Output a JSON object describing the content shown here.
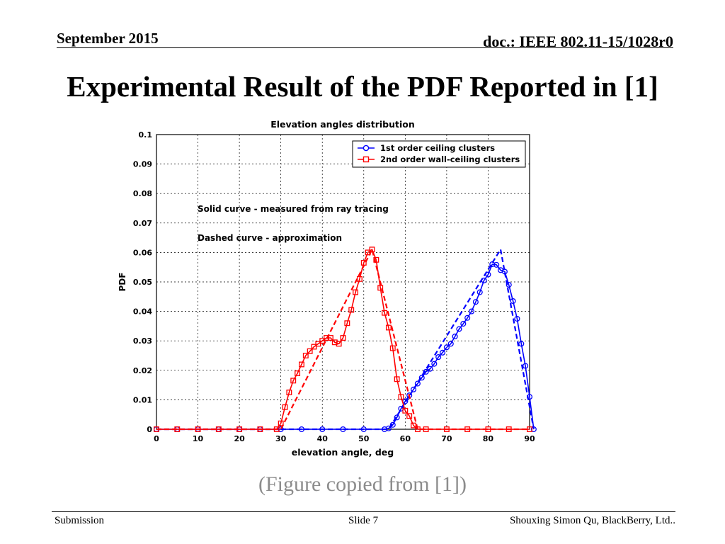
{
  "header": {
    "date": "September 2015",
    "doc_id": "doc.: IEEE 802.11-15/1028r0"
  },
  "slide_title": "Experimental Result of the PDF Reported in [1]",
  "caption": "(Figure copied from [1])",
  "footer": {
    "left": "Submission",
    "center": "Slide 7",
    "right": "Shouxing Simon Qu, BlackBerry, Ltd.."
  },
  "colors": {
    "blue": "#0000ff",
    "red": "#ff0000",
    "grid": "#000000"
  },
  "chart_data": {
    "type": "line",
    "title": "Elevation angles distribution",
    "xlabel": "elevation angle, deg",
    "ylabel": "PDF",
    "xlim": [
      0,
      90
    ],
    "ylim": [
      0,
      0.1
    ],
    "xticks": [
      "0",
      "10",
      "20",
      "30",
      "40",
      "50",
      "60",
      "70",
      "80",
      "90"
    ],
    "yticks": [
      "0",
      "0.01",
      "0.02",
      "0.03",
      "0.04",
      "0.05",
      "0.06",
      "0.07",
      "0.08",
      "0.09",
      "0.1"
    ],
    "grid": true,
    "legend_position": "top-right",
    "annotations": [
      "Solid curve - measured from ray tracing",
      "Dashed curve - approximation"
    ],
    "series": [
      {
        "name": "1st order ceiling clusters",
        "color": "#0000ff",
        "marker": "circle",
        "measured": [
          [
            0,
            0
          ],
          [
            5,
            0
          ],
          [
            10,
            0
          ],
          [
            15,
            0
          ],
          [
            20,
            0
          ],
          [
            25,
            0
          ],
          [
            30,
            0
          ],
          [
            35,
            0
          ],
          [
            40,
            0
          ],
          [
            45,
            0
          ],
          [
            50,
            0
          ],
          [
            55,
            0
          ],
          [
            56,
            0.0003
          ],
          [
            57,
            0.0015
          ],
          [
            58,
            0.004
          ],
          [
            59,
            0.007
          ],
          [
            60,
            0.0095
          ],
          [
            61,
            0.0115
          ],
          [
            62,
            0.0135
          ],
          [
            63,
            0.0155
          ],
          [
            64,
            0.0175
          ],
          [
            65,
            0.0195
          ],
          [
            66,
            0.0205
          ],
          [
            67,
            0.0222
          ],
          [
            68,
            0.0245
          ],
          [
            69,
            0.026
          ],
          [
            70,
            0.0278
          ],
          [
            71,
            0.029
          ],
          [
            72,
            0.0315
          ],
          [
            73,
            0.034
          ],
          [
            74,
            0.0358
          ],
          [
            75,
            0.0378
          ],
          [
            76,
            0.04
          ],
          [
            77,
            0.0432
          ],
          [
            78,
            0.0465
          ],
          [
            79,
            0.0505
          ],
          [
            80,
            0.0525
          ],
          [
            81,
            0.056
          ],
          [
            82,
            0.0558
          ],
          [
            83,
            0.054
          ],
          [
            84,
            0.0535
          ],
          [
            85,
            0.049
          ],
          [
            86,
            0.0435
          ],
          [
            87,
            0.0375
          ],
          [
            88,
            0.029
          ],
          [
            89,
            0.0215
          ],
          [
            90,
            0.011
          ],
          [
            91,
            0.0
          ]
        ],
        "approximation": [
          [
            0,
            0
          ],
          [
            56,
            0
          ],
          [
            83,
            0.061
          ],
          [
            91,
            0
          ]
        ]
      },
      {
        "name": "2nd order wall-ceiling clusters",
        "color": "#ff0000",
        "marker": "square",
        "measured": [
          [
            0,
            0
          ],
          [
            5,
            0
          ],
          [
            10,
            0
          ],
          [
            15,
            0
          ],
          [
            20,
            0
          ],
          [
            25,
            0
          ],
          [
            29,
            0
          ],
          [
            30,
            0.002
          ],
          [
            31,
            0.0075
          ],
          [
            32,
            0.0125
          ],
          [
            33,
            0.0165
          ],
          [
            34,
            0.019
          ],
          [
            35,
            0.022
          ],
          [
            36,
            0.025
          ],
          [
            37,
            0.0265
          ],
          [
            38,
            0.028
          ],
          [
            39,
            0.029
          ],
          [
            40,
            0.03
          ],
          [
            41,
            0.031
          ],
          [
            42,
            0.031
          ],
          [
            43,
            0.0295
          ],
          [
            44,
            0.029
          ],
          [
            45,
            0.031
          ],
          [
            46,
            0.036
          ],
          [
            47,
            0.0405
          ],
          [
            48,
            0.0465
          ],
          [
            49,
            0.051
          ],
          [
            50,
            0.0565
          ],
          [
            51,
            0.06
          ],
          [
            52,
            0.061
          ],
          [
            53,
            0.0575
          ],
          [
            54,
            0.048
          ],
          [
            55,
            0.0395
          ],
          [
            56,
            0.0345
          ],
          [
            57,
            0.0275
          ],
          [
            58,
            0.017
          ],
          [
            59,
            0.011
          ],
          [
            60,
            0.0063
          ],
          [
            61,
            0.0045
          ],
          [
            62,
            0.0013
          ],
          [
            63,
            0
          ],
          [
            65,
            0
          ],
          [
            70,
            0
          ],
          [
            75,
            0
          ],
          [
            80,
            0
          ],
          [
            85,
            0
          ],
          [
            90,
            0
          ]
        ],
        "approximation": [
          [
            0,
            0
          ],
          [
            30,
            0
          ],
          [
            52,
            0.061
          ],
          [
            63,
            0
          ],
          [
            90,
            0
          ]
        ]
      }
    ]
  }
}
